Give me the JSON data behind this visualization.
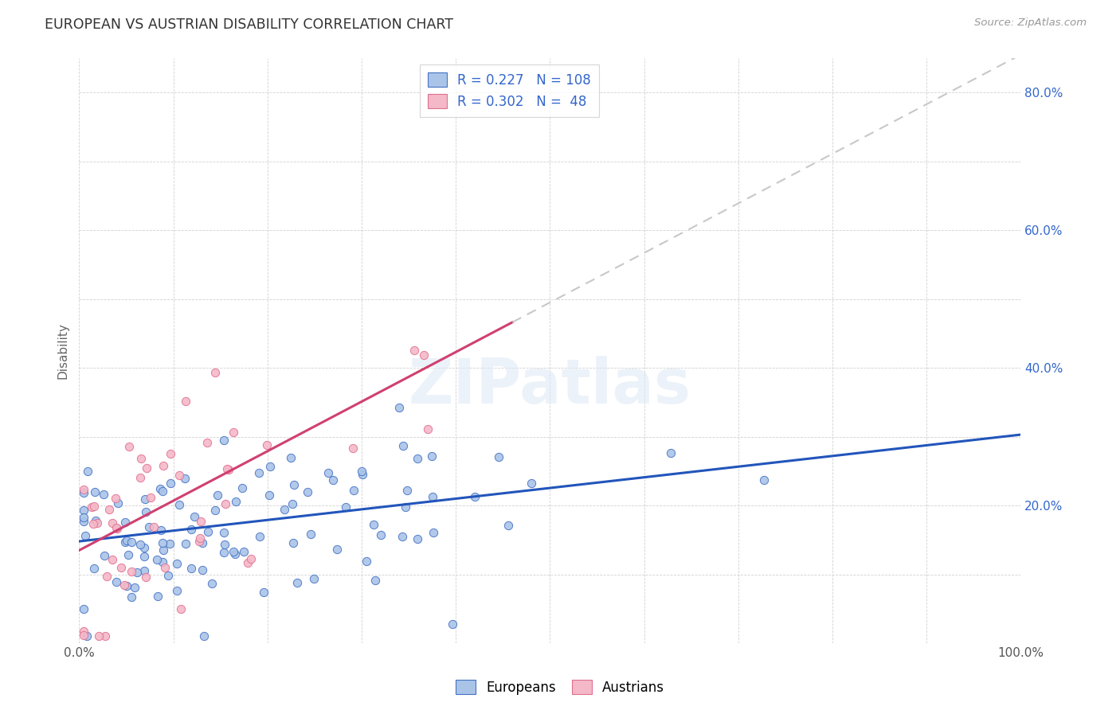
{
  "title": "EUROPEAN VS AUSTRIAN DISABILITY CORRELATION CHART",
  "source": "Source: ZipAtlas.com",
  "ylabel": "Disability",
  "xlim": [
    0.0,
    1.0
  ],
  "ylim": [
    0.0,
    0.85
  ],
  "europeans_color": "#aac4e8",
  "austrians_color": "#f4b8c8",
  "europeans_edge_color": "#4472c4",
  "austrians_edge_color": "#e07090",
  "europeans_line_color": "#2255bb",
  "austrians_line_color": "#d04070",
  "trendline_ext_color": "#c8c8c8",
  "R_europeans": 0.227,
  "N_europeans": 108,
  "R_austrians": 0.302,
  "N_austrians": 48,
  "legend_label_europeans": "Europeans",
  "legend_label_austrians": "Austrians",
  "watermark": "ZIPatlas",
  "eu_intercept": 0.148,
  "eu_slope": 0.155,
  "au_intercept": 0.135,
  "au_slope": 0.72,
  "eu_seed": 7,
  "au_seed": 12
}
